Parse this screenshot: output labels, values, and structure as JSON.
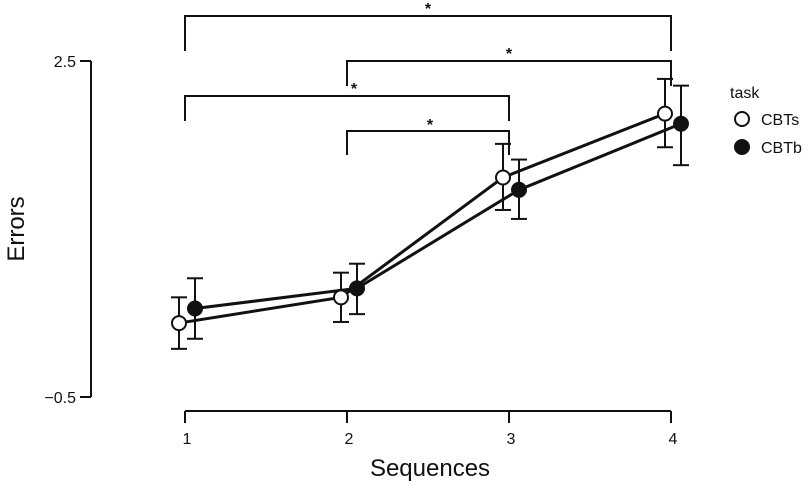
{
  "chart_data": {
    "type": "line",
    "title": "",
    "xlabel": "Sequences",
    "ylabel": "Errors",
    "x": [
      1,
      2,
      3,
      4
    ],
    "x_tick_labels": [
      "1",
      "2",
      "3",
      "4"
    ],
    "y_tick_labels": [
      "2.5",
      "−0.5"
    ],
    "y_ticks": [
      2.5,
      -0.5
    ],
    "ylim": [
      -0.5,
      2.5
    ],
    "grid": false,
    "legend": {
      "title": "task",
      "placement": "right",
      "entries": [
        "CBTs",
        "CBTb"
      ]
    },
    "series": [
      {
        "name": "CBTs",
        "marker": "open-circle",
        "color": "#111111",
        "values": [
          0.16,
          0.39,
          1.46,
          2.03
        ],
        "err_low": [
          -0.07,
          0.17,
          1.17,
          1.73
        ],
        "err_high": [
          0.39,
          0.61,
          1.76,
          2.34
        ]
      },
      {
        "name": "CBTb",
        "marker": "filled-circle",
        "color": "#111111",
        "values": [
          0.29,
          0.47,
          1.35,
          1.94
        ],
        "err_low": [
          0.02,
          0.24,
          1.09,
          1.57
        ],
        "err_high": [
          0.56,
          0.69,
          1.62,
          2.28
        ]
      }
    ],
    "significance": [
      {
        "from": 1,
        "to": 4,
        "label": "*"
      },
      {
        "from": 2,
        "to": 4,
        "label": "*"
      },
      {
        "from": 1,
        "to": 3,
        "label": "*"
      },
      {
        "from": 2,
        "to": 3,
        "label": "*"
      }
    ]
  }
}
